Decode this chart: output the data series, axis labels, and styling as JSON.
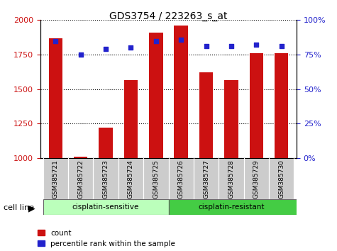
{
  "title": "GDS3754 / 223263_s_at",
  "samples": [
    "GSM385721",
    "GSM385722",
    "GSM385723",
    "GSM385724",
    "GSM385725",
    "GSM385726",
    "GSM385727",
    "GSM385728",
    "GSM385729",
    "GSM385730"
  ],
  "counts": [
    1870,
    1010,
    1220,
    1565,
    1910,
    1960,
    1620,
    1565,
    1760,
    1760
  ],
  "percentile_ranks": [
    85,
    75,
    79,
    80,
    85,
    86,
    81,
    81,
    82,
    81
  ],
  "ylim_left": [
    1000,
    2000
  ],
  "ylim_right": [
    0,
    100
  ],
  "yticks_left": [
    1000,
    1250,
    1500,
    1750,
    2000
  ],
  "yticks_right": [
    0,
    25,
    50,
    75,
    100
  ],
  "bar_color": "#cc1111",
  "dot_color": "#2222cc",
  "background_color": "#ffffff",
  "grid_color": "#000000",
  "n_sensitive": 5,
  "n_resistant": 5,
  "sensitive_color": "#bbffbb",
  "resistant_color": "#44cc44",
  "tick_label_bg": "#cccccc",
  "legend_count_label": "count",
  "legend_pct_label": "percentile rank within the sample",
  "cell_line_label": "cell line"
}
